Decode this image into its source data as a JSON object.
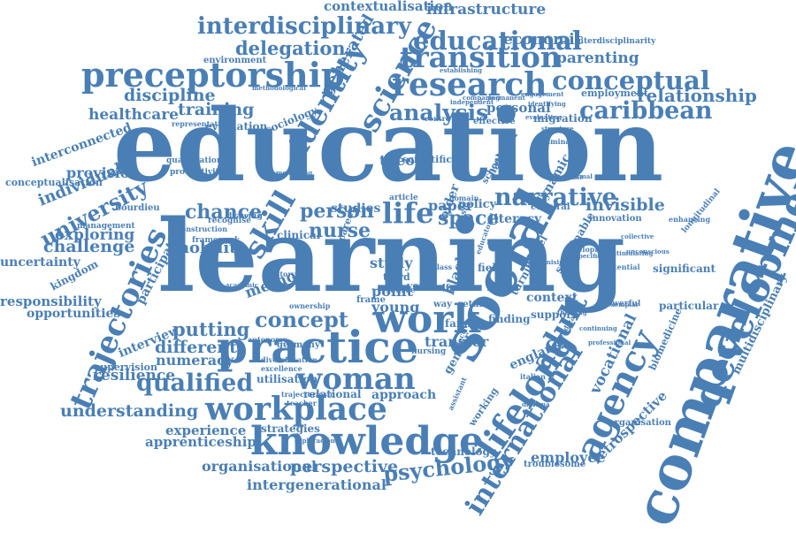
{
  "words": [
    "education",
    "learning",
    "practice",
    "social",
    "comparative",
    "knowledge",
    "workplace",
    "development",
    "lifelong",
    "trajectories",
    "agency",
    "international",
    "adult",
    "work",
    "woman",
    "qualified",
    "research",
    "science",
    "preceptorship",
    "educational",
    "transition",
    "skill",
    "narrative",
    "life",
    "caribbean",
    "identity",
    "analysis",
    "conceptual",
    "interdisciplinary",
    "contextualisation",
    "infrastructure",
    "delegation",
    "economic",
    "parenting",
    "relationship",
    "employment",
    "interdisciplinarity",
    "environment",
    "discipline",
    "healthcare",
    "training",
    "representation",
    "university",
    "individual",
    "provision",
    "interconnected",
    "conceptualisation",
    "exploring",
    "challenge",
    "kingdom",
    "uncertainty",
    "responsibility",
    "opportunities",
    "participation",
    "interview",
    "supervision",
    "resilience",
    "different",
    "numeracy",
    "understanding",
    "experience",
    "apprenticeship",
    "organisational",
    "intergenerational",
    "perspective",
    "psychology",
    "retrospective",
    "employee",
    "vocational",
    "multidisciplinary",
    "significant",
    "biomedicine",
    "context",
    "mobility",
    "chance",
    "method",
    "putting",
    "concept",
    "person",
    "nurse",
    "space",
    "invisible",
    "theory",
    "generated",
    "sociology",
    "evaluation",
    "utilisation",
    "strategies",
    "relational",
    "approach",
    "transfer",
    "england",
    "families",
    "technology",
    "young",
    "point",
    "study",
    "black",
    "older",
    "way",
    "self",
    "field",
    "return",
    "finding",
    "support",
    "clinical",
    "model",
    "turning",
    "sustainable",
    "national",
    "school",
    "dynamic",
    "scientific",
    "personal",
    "effective",
    "migration",
    "cultural",
    "innovation",
    "paper",
    "policy",
    "literacy",
    "studies",
    "frame",
    "particular",
    "powerful",
    "organisation",
    "troublesome",
    "gender",
    "youth",
    "third",
    "career",
    "working",
    "assistant",
    "nursing",
    "germany",
    "autonomy",
    "construction",
    "recognise",
    "drawing",
    "framework",
    "bourdieu",
    "management",
    "qualification",
    "productivity",
    "history",
    "ownership",
    "centre",
    "article",
    "domain",
    "longitudinal",
    "potential",
    "exemplar",
    "enhancing",
    "identifying",
    "liminality",
    "evaluating",
    "comparing",
    "establishing",
    "methodological",
    "independent",
    "permanent",
    "engagement",
    "trajectoriesin",
    "excellence",
    "diversification",
    "academic",
    "reflective",
    "risk",
    "source",
    "live",
    "basic",
    "aged",
    "class",
    "educator",
    "italian",
    "developing",
    "diploma",
    "teacher",
    "exploración",
    "aprendizaje",
    "stimulating",
    "feasible",
    "organising",
    "thinking",
    "unconscious",
    "specific",
    "collective",
    "continuing",
    "professional",
    "formal",
    "structure",
    "mentoring",
    "contemporary",
    "reflection",
    "competence",
    "emphasis"
  ]
}
